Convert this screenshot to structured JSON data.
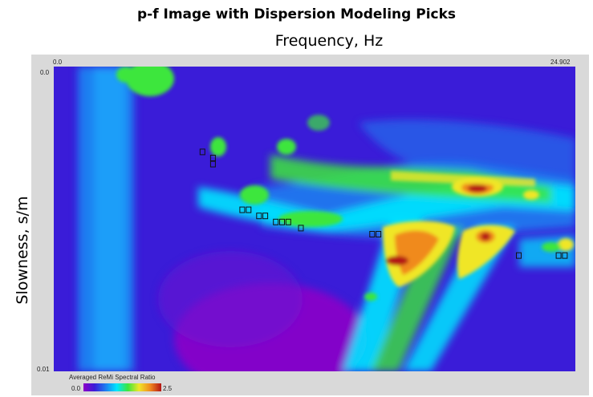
{
  "chart_data": {
    "type": "heatmap",
    "title": "p-f Image with Dispersion Modeling Picks",
    "xlabel": "Frequency, Hz",
    "ylabel": "Slowness, s/m",
    "x_tick_labels": [
      "0.0",
      "24.902"
    ],
    "y_tick_labels": [
      "0.0",
      "0.01"
    ],
    "xlim": [
      0.0,
      24.902
    ],
    "ylim": [
      0.0,
      0.01
    ],
    "y_axis_direction": "down",
    "colorbar": {
      "title": "Averaged ReMi Spectral Ratio",
      "min_label": "0.0",
      "max_label": "2.5",
      "range": [
        0.0,
        2.5
      ],
      "colors": [
        "#8c00c8",
        "#3a1cd8",
        "#1d7df0",
        "#00e6ff",
        "#3ce63c",
        "#f0e628",
        "#f08a1e",
        "#b41414"
      ]
    },
    "picks_shape": "small black-outlined squares",
    "picks": [
      {
        "x": 7.1,
        "y": 0.0028
      },
      {
        "x": 7.6,
        "y": 0.003
      },
      {
        "x": 7.6,
        "y": 0.0032
      },
      {
        "x": 9.0,
        "y": 0.0047
      },
      {
        "x": 9.3,
        "y": 0.0047
      },
      {
        "x": 9.8,
        "y": 0.0049
      },
      {
        "x": 10.1,
        "y": 0.0049
      },
      {
        "x": 10.6,
        "y": 0.0051
      },
      {
        "x": 10.9,
        "y": 0.0051
      },
      {
        "x": 11.2,
        "y": 0.0051
      },
      {
        "x": 11.8,
        "y": 0.0053
      },
      {
        "x": 15.2,
        "y": 0.0055
      },
      {
        "x": 15.5,
        "y": 0.0055
      },
      {
        "x": 22.2,
        "y": 0.0062
      },
      {
        "x": 24.1,
        "y": 0.0062
      },
      {
        "x": 24.4,
        "y": 0.0062
      }
    ],
    "background_color": "#3a1cd8"
  }
}
